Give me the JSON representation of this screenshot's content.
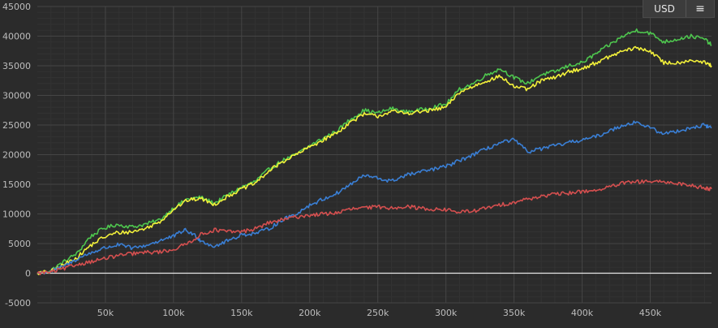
{
  "toolbar": {
    "currency_label": "USD",
    "menu_icon": "hamburger-menu-icon",
    "menu_glyph": "≡"
  },
  "chart_data": {
    "type": "line",
    "title": "",
    "xlabel": "",
    "ylabel": "",
    "xlim": [
      0,
      495000
    ],
    "ylim": [
      -5000,
      45000
    ],
    "grid": true,
    "legend": "none",
    "x_ticks": [
      50000,
      100000,
      150000,
      200000,
      250000,
      300000,
      350000,
      400000,
      450000
    ],
    "x_tick_labels": [
      "50k",
      "100k",
      "150k",
      "200k",
      "250k",
      "300k",
      "350k",
      "400k",
      "450k"
    ],
    "y_ticks": [
      -5000,
      0,
      5000,
      10000,
      15000,
      20000,
      25000,
      30000,
      35000,
      40000,
      45000
    ],
    "y_tick_labels": [
      "-5000",
      "0",
      "5000",
      "10000",
      "15000",
      "20000",
      "25000",
      "30000",
      "35000",
      "40000",
      "45000"
    ],
    "series": [
      {
        "color": "#4ec64e",
        "points": [
          [
            0,
            0
          ],
          [
            10000,
            500
          ],
          [
            20000,
            2000
          ],
          [
            30000,
            3500
          ],
          [
            38000,
            6000
          ],
          [
            48000,
            7500
          ],
          [
            58000,
            8200
          ],
          [
            70000,
            7800
          ],
          [
            80000,
            8300
          ],
          [
            90000,
            9000
          ],
          [
            100000,
            11000
          ],
          [
            110000,
            12500
          ],
          [
            120000,
            12800
          ],
          [
            130000,
            11800
          ],
          [
            140000,
            13200
          ],
          [
            150000,
            14500
          ],
          [
            160000,
            15500
          ],
          [
            170000,
            17500
          ],
          [
            180000,
            19000
          ],
          [
            190000,
            20000
          ],
          [
            200000,
            21500
          ],
          [
            210000,
            22800
          ],
          [
            220000,
            24000
          ],
          [
            230000,
            26000
          ],
          [
            240000,
            27500
          ],
          [
            250000,
            27000
          ],
          [
            260000,
            27800
          ],
          [
            270000,
            27200
          ],
          [
            280000,
            27500
          ],
          [
            290000,
            28000
          ],
          [
            300000,
            28500
          ],
          [
            310000,
            31000
          ],
          [
            320000,
            32000
          ],
          [
            330000,
            33500
          ],
          [
            340000,
            34500
          ],
          [
            350000,
            33000
          ],
          [
            360000,
            32000
          ],
          [
            370000,
            33500
          ],
          [
            380000,
            34000
          ],
          [
            390000,
            35000
          ],
          [
            400000,
            35500
          ],
          [
            410000,
            37000
          ],
          [
            420000,
            38500
          ],
          [
            430000,
            40000
          ],
          [
            440000,
            41000
          ],
          [
            450000,
            40500
          ],
          [
            460000,
            39000
          ],
          [
            470000,
            39500
          ],
          [
            480000,
            40000
          ],
          [
            490000,
            39500
          ],
          [
            495000,
            38500
          ]
        ]
      },
      {
        "color": "#f2f03a",
        "points": [
          [
            0,
            0
          ],
          [
            10000,
            300
          ],
          [
            20000,
            1500
          ],
          [
            30000,
            2800
          ],
          [
            38000,
            4500
          ],
          [
            48000,
            6000
          ],
          [
            58000,
            6800
          ],
          [
            70000,
            7000
          ],
          [
            80000,
            7600
          ],
          [
            90000,
            8700
          ],
          [
            100000,
            10800
          ],
          [
            110000,
            12300
          ],
          [
            120000,
            12600
          ],
          [
            130000,
            11600
          ],
          [
            140000,
            13000
          ],
          [
            150000,
            14200
          ],
          [
            160000,
            15200
          ],
          [
            170000,
            17200
          ],
          [
            180000,
            18800
          ],
          [
            190000,
            20000
          ],
          [
            200000,
            21300
          ],
          [
            210000,
            22500
          ],
          [
            220000,
            23700
          ],
          [
            230000,
            25500
          ],
          [
            240000,
            26800
          ],
          [
            250000,
            26500
          ],
          [
            260000,
            27300
          ],
          [
            270000,
            27000
          ],
          [
            280000,
            27200
          ],
          [
            290000,
            27500
          ],
          [
            300000,
            28000
          ],
          [
            310000,
            30500
          ],
          [
            320000,
            31500
          ],
          [
            330000,
            32500
          ],
          [
            340000,
            33200
          ],
          [
            350000,
            31500
          ],
          [
            360000,
            31000
          ],
          [
            370000,
            32500
          ],
          [
            380000,
            33000
          ],
          [
            390000,
            34000
          ],
          [
            400000,
            34500
          ],
          [
            410000,
            35500
          ],
          [
            420000,
            36500
          ],
          [
            430000,
            37500
          ],
          [
            440000,
            38000
          ],
          [
            450000,
            37500
          ],
          [
            460000,
            35500
          ],
          [
            470000,
            35500
          ],
          [
            480000,
            36000
          ],
          [
            490000,
            35500
          ],
          [
            495000,
            35000
          ]
        ]
      },
      {
        "color": "#3a7fd5",
        "points": [
          [
            0,
            0
          ],
          [
            10000,
            300
          ],
          [
            20000,
            1200
          ],
          [
            30000,
            2500
          ],
          [
            40000,
            3500
          ],
          [
            50000,
            4300
          ],
          [
            60000,
            4800
          ],
          [
            70000,
            4200
          ],
          [
            80000,
            4700
          ],
          [
            90000,
            5500
          ],
          [
            100000,
            6200
          ],
          [
            108000,
            7300
          ],
          [
            115000,
            6500
          ],
          [
            120000,
            5500
          ],
          [
            130000,
            4500
          ],
          [
            140000,
            5500
          ],
          [
            150000,
            6500
          ],
          [
            160000,
            6700
          ],
          [
            170000,
            7500
          ],
          [
            180000,
            9000
          ],
          [
            190000,
            10000
          ],
          [
            200000,
            11500
          ],
          [
            210000,
            12500
          ],
          [
            220000,
            13500
          ],
          [
            230000,
            15000
          ],
          [
            240000,
            16500
          ],
          [
            250000,
            16000
          ],
          [
            260000,
            15500
          ],
          [
            270000,
            16500
          ],
          [
            280000,
            17000
          ],
          [
            290000,
            17500
          ],
          [
            300000,
            18000
          ],
          [
            310000,
            19000
          ],
          [
            320000,
            20000
          ],
          [
            330000,
            21000
          ],
          [
            340000,
            22000
          ],
          [
            350000,
            22500
          ],
          [
            360000,
            20500
          ],
          [
            370000,
            21000
          ],
          [
            380000,
            21500
          ],
          [
            390000,
            22000
          ],
          [
            400000,
            22500
          ],
          [
            410000,
            23000
          ],
          [
            420000,
            24000
          ],
          [
            430000,
            25000
          ],
          [
            440000,
            25500
          ],
          [
            450000,
            24500
          ],
          [
            460000,
            23500
          ],
          [
            470000,
            24000
          ],
          [
            480000,
            24500
          ],
          [
            490000,
            25000
          ],
          [
            495000,
            24500
          ]
        ]
      },
      {
        "color": "#d44f4f",
        "points": [
          [
            0,
            0
          ],
          [
            10000,
            200
          ],
          [
            20000,
            800
          ],
          [
            30000,
            1500
          ],
          [
            40000,
            2000
          ],
          [
            50000,
            2500
          ],
          [
            60000,
            3000
          ],
          [
            70000,
            3300
          ],
          [
            80000,
            3500
          ],
          [
            90000,
            3600
          ],
          [
            100000,
            4000
          ],
          [
            110000,
            5000
          ],
          [
            120000,
            6500
          ],
          [
            130000,
            7300
          ],
          [
            140000,
            7000
          ],
          [
            150000,
            7000
          ],
          [
            160000,
            7500
          ],
          [
            170000,
            8500
          ],
          [
            180000,
            9000
          ],
          [
            190000,
            9500
          ],
          [
            200000,
            9800
          ],
          [
            210000,
            10000
          ],
          [
            220000,
            10200
          ],
          [
            230000,
            10800
          ],
          [
            240000,
            11000
          ],
          [
            250000,
            11200
          ],
          [
            260000,
            11000
          ],
          [
            270000,
            11300
          ],
          [
            280000,
            11000
          ],
          [
            290000,
            10800
          ],
          [
            300000,
            10700
          ],
          [
            310000,
            10300
          ],
          [
            320000,
            10500
          ],
          [
            330000,
            11000
          ],
          [
            340000,
            11500
          ],
          [
            350000,
            12000
          ],
          [
            360000,
            12500
          ],
          [
            370000,
            13000
          ],
          [
            380000,
            13300
          ],
          [
            390000,
            13500
          ],
          [
            400000,
            13800
          ],
          [
            410000,
            14000
          ],
          [
            420000,
            14500
          ],
          [
            430000,
            15200
          ],
          [
            440000,
            15400
          ],
          [
            450000,
            15500
          ],
          [
            460000,
            15300
          ],
          [
            470000,
            15200
          ],
          [
            480000,
            14800
          ],
          [
            490000,
            14400
          ],
          [
            495000,
            14200
          ]
        ]
      }
    ]
  }
}
